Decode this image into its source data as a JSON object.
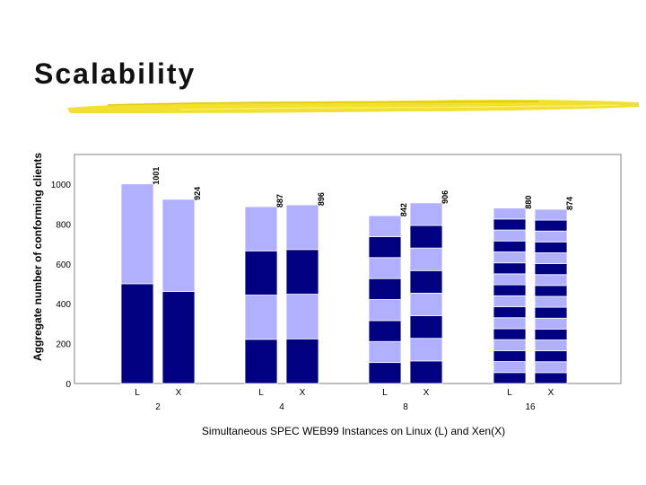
{
  "slide": {
    "title": "Scalability"
  },
  "colors": {
    "dark_band": "#000080",
    "light_band": "#b0b0ff",
    "brush": "#f2e030",
    "axis": "#808080"
  },
  "chart_data": {
    "type": "bar",
    "subtype": "stacked",
    "title": "",
    "xlabel": "Simultaneous SPEC WEB99 Instances on Linux (L) and Xen(X)",
    "ylabel": "Aggregate number of conforming clients",
    "ylim": [
      0,
      1000
    ],
    "yticks": [
      0,
      200,
      400,
      600,
      800,
      1000
    ],
    "groups": [
      {
        "instances": "2",
        "bars": [
          {
            "os": "L",
            "total": 1001,
            "label": "1001"
          },
          {
            "os": "X",
            "total": 924,
            "label": "924"
          }
        ]
      },
      {
        "instances": "4",
        "bars": [
          {
            "os": "L",
            "total": 887,
            "label": "887"
          },
          {
            "os": "X",
            "total": 896,
            "label": "896"
          }
        ]
      },
      {
        "instances": "8",
        "bars": [
          {
            "os": "L",
            "total": 842,
            "label": "842"
          },
          {
            "os": "X",
            "total": 906,
            "label": "906"
          }
        ]
      },
      {
        "instances": "16",
        "bars": [
          {
            "os": "L",
            "total": 880,
            "label": "880"
          },
          {
            "os": "X",
            "total": 874,
            "label": "874"
          }
        ]
      }
    ],
    "grid": false,
    "legend": "none"
  }
}
